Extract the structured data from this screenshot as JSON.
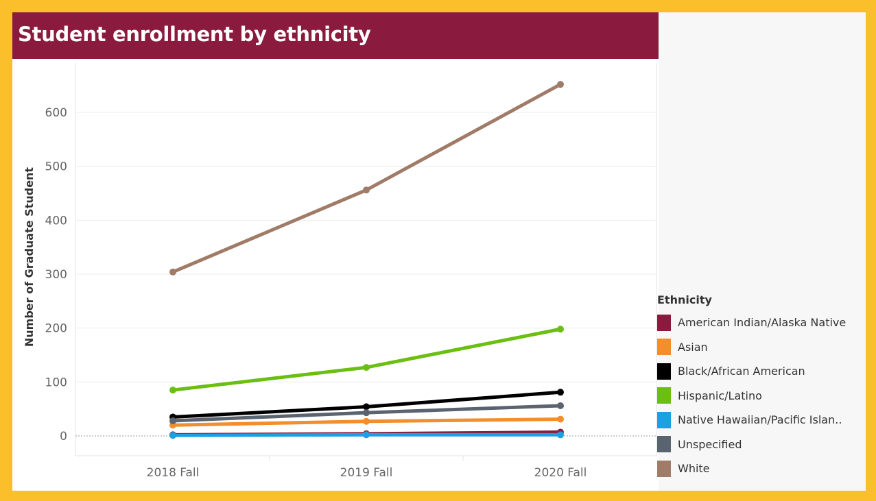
{
  "header": {
    "title": "Student enrollment by ethnicity"
  },
  "legend": {
    "title": "Ethnicity"
  },
  "colors": {
    "title_bar": "#8a1b3e",
    "frame": "#fbbf2b"
  },
  "chart_data": {
    "type": "line",
    "title": "Student enrollment by ethnicity",
    "xlabel": "",
    "ylabel": "Number of Graduate Student",
    "x": [
      "2018 Fall",
      "2019 Fall",
      "2020 Fall"
    ],
    "ylim": [
      -35,
      680
    ],
    "yticks": [
      0,
      100,
      200,
      300,
      400,
      500,
      600
    ],
    "grid": true,
    "legend_position": "right",
    "series": [
      {
        "name": "American Indian/Alaska Native",
        "color": "#8a1b3e",
        "values": [
          2,
          4,
          7
        ]
      },
      {
        "name": "Asian",
        "color": "#f28e2b",
        "values": [
          20,
          27,
          31
        ]
      },
      {
        "name": "Black/African American",
        "color": "#000000",
        "values": [
          35,
          54,
          81
        ]
      },
      {
        "name": "Hispanic/Latino",
        "color": "#6abf11",
        "values": [
          85,
          127,
          198
        ]
      },
      {
        "name": "Native Hawaiian/Pacific Islan..",
        "color": "#1ba1e2",
        "values": [
          1,
          2,
          2
        ]
      },
      {
        "name": "Unspecified",
        "color": "#5a6470",
        "values": [
          28,
          43,
          56
        ]
      },
      {
        "name": "White",
        "color": "#a07c68",
        "values": [
          304,
          456,
          652
        ]
      }
    ]
  }
}
